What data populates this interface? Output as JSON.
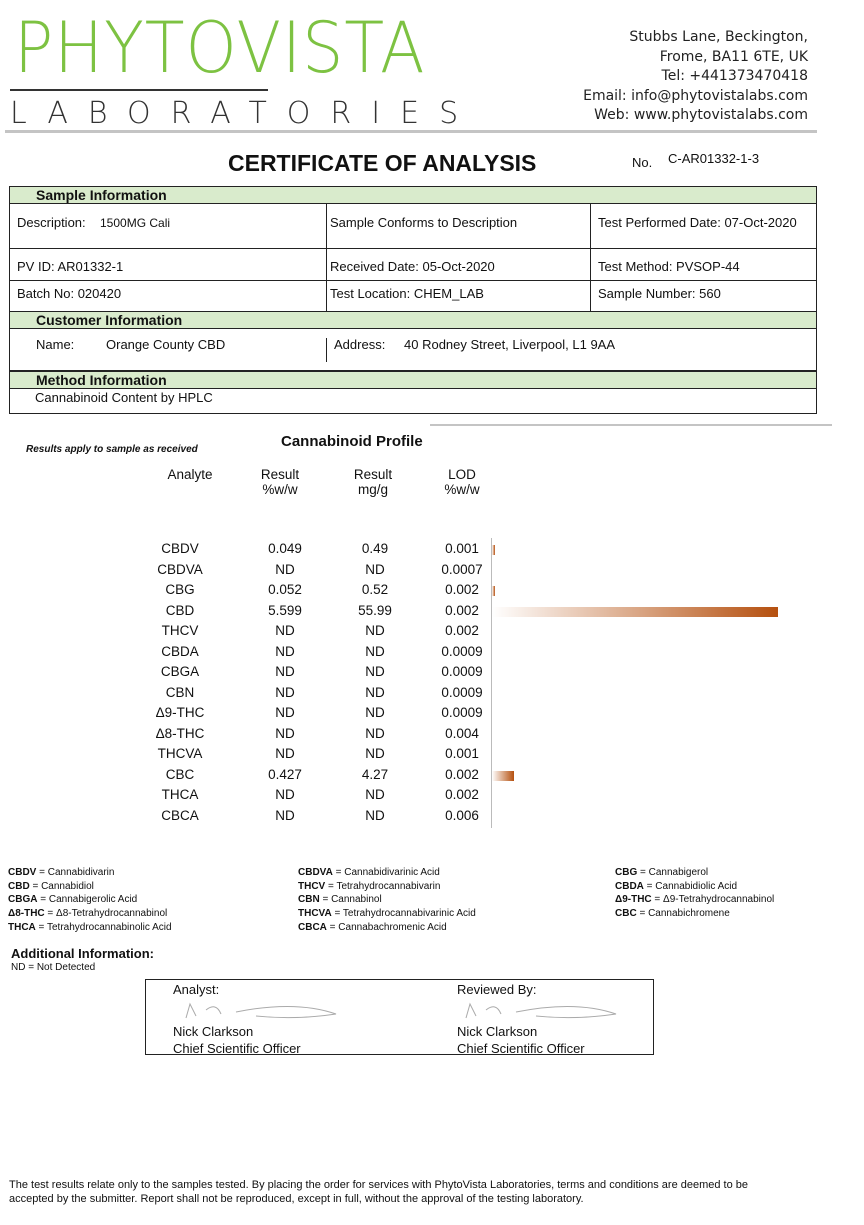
{
  "header": {
    "logo_top": "PHYTOVISTA",
    "logo_bottom": "LABORATORIES",
    "address": [
      "Stubbs Lane, Beckington,",
      "Frome, BA11 6TE, UK",
      "Tel: +441373470418",
      "Email: info@phytovistalabs.com",
      "Web: www.phytovistalabs.com"
    ]
  },
  "title": "CERTIFICATE OF ANALYSIS",
  "no_label": "No.",
  "no_value": "C-AR01332-1-3",
  "sample": {
    "heading": "Sample Information",
    "description_label": "Description:",
    "description": "1500MG Cali",
    "conforms": "Sample Conforms to Description",
    "test_date": "Test Performed Date: 07-Oct-2020",
    "pv_id": "PV ID: AR01332-1",
    "received": "Received Date:  05-Oct-2020",
    "method": "Test Method: PVSOP-44",
    "batch": "Batch No: 020420",
    "location": "Test Location: CHEM_LAB",
    "sample_number": "Sample Number:  560"
  },
  "customer": {
    "heading": "Customer Information",
    "name_label": "Name:",
    "name": "Orange County CBD",
    "address_label": "Address:",
    "address": "40 Rodney Street, Liverpool, L1 9AA"
  },
  "method": {
    "heading": "Method Information",
    "text": "Cannabinoid Content by HPLC"
  },
  "results_note": "Results apply to sample as received",
  "profile_title": "Cannabinoid Profile",
  "columns": [
    "Analyte",
    "Result\n%w/w",
    "Result\nmg/g",
    "LOD\n%w/w"
  ],
  "bar_color": "#b5500f",
  "rows": [
    {
      "analyte": "CBDV",
      "pct": "0.049",
      "mg": "0.49",
      "lod": "0.001",
      "bar": 0.049
    },
    {
      "analyte": "CBDVA",
      "pct": "ND",
      "mg": "ND",
      "lod": "0.0007",
      "bar": 0
    },
    {
      "analyte": "CBG",
      "pct": "0.052",
      "mg": "0.52",
      "lod": "0.002",
      "bar": 0.052
    },
    {
      "analyte": "CBD",
      "pct": "5.599",
      "mg": "55.99",
      "lod": "0.002",
      "bar": 5.599
    },
    {
      "analyte": "THCV",
      "pct": "ND",
      "mg": "ND",
      "lod": "0.002",
      "bar": 0
    },
    {
      "analyte": "CBDA",
      "pct": "ND",
      "mg": "ND",
      "lod": "0.0009",
      "bar": 0
    },
    {
      "analyte": "CBGA",
      "pct": "ND",
      "mg": "ND",
      "lod": "0.0009",
      "bar": 0
    },
    {
      "analyte": "CBN",
      "pct": "ND",
      "mg": "ND",
      "lod": "0.0009",
      "bar": 0
    },
    {
      "analyte": "Δ9-THC",
      "pct": "ND",
      "mg": "ND",
      "lod": "0.0009",
      "bar": 0
    },
    {
      "analyte": "Δ8-THC",
      "pct": "ND",
      "mg": "ND",
      "lod": "0.004",
      "bar": 0
    },
    {
      "analyte": "THCVA",
      "pct": "ND",
      "mg": "ND",
      "lod": "0.001",
      "bar": 0
    },
    {
      "analyte": "CBC",
      "pct": "0.427",
      "mg": "4.27",
      "lod": "0.002",
      "bar": 0.427
    },
    {
      "analyte": "THCA",
      "pct": "ND",
      "mg": "ND",
      "lod": "0.002",
      "bar": 0
    },
    {
      "analyte": "CBCA",
      "pct": "ND",
      "mg": "ND",
      "lod": "0.006",
      "bar": 0
    }
  ],
  "legend": [
    [
      [
        "CBDV",
        "Cannabidivarin"
      ],
      [
        "CBD",
        "Cannabidiol"
      ],
      [
        "CBGA",
        "Cannabigerolic Acid"
      ],
      [
        "Δ8-THC",
        "Δ8-Tetrahydrocannabinol"
      ],
      [
        "THCA",
        "Tetrahydrocannabinolic Acid"
      ]
    ],
    [
      [
        "CBDVA",
        "Cannabidivarinic Acid"
      ],
      [
        "THCV",
        "Tetrahydrocannabivarin"
      ],
      [
        "CBN",
        "Cannabinol"
      ],
      [
        "THCVA",
        "Tetrahydrocannabivarinic Acid"
      ],
      [
        "CBCA",
        "Cannabachromenic Acid"
      ]
    ],
    [
      [
        "CBG",
        "Cannabigerol"
      ],
      [
        "CBDA",
        "Cannabidiolic Acid"
      ],
      [
        "Δ9-THC",
        "Δ9-Tetrahydrocannabinol"
      ],
      [
        "CBC",
        "Cannabichromene"
      ]
    ]
  ],
  "additional": {
    "heading": "Additional Information:",
    "text": "ND = Not Detected"
  },
  "signatures": {
    "analyst_label": "Analyst:",
    "reviewer_label": "Reviewed By:",
    "analyst_name": "Nick Clarkson",
    "analyst_title": "Chief Scientific Officer",
    "reviewer_name": "Nick Clarkson",
    "reviewer_title": "Chief Scientific Officer"
  },
  "footer": "The test results relate only to the samples tested.  By placing the order for services with PhytoVista Laboratories, terms and conditions are deemed to be accepted by the submitter. Report shall not be reproduced, except in full, without the approval of the testing laboratory."
}
